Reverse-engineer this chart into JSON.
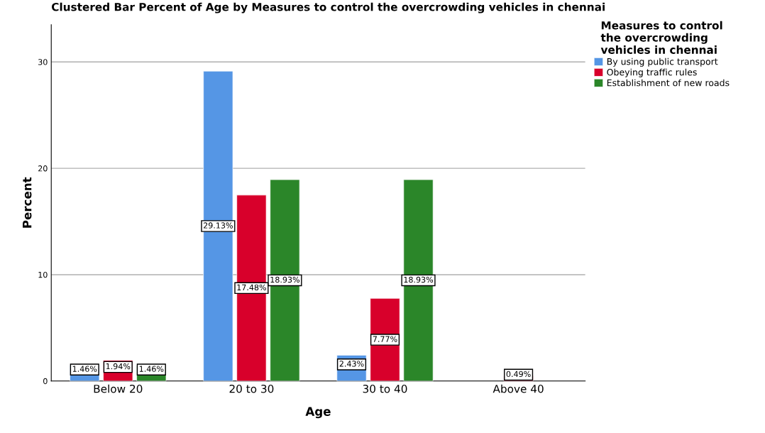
{
  "chart_data": {
    "type": "bar",
    "title": "Clustered Bar Percent of Age by Measures to control the overcrowding vehicles in chennai",
    "xlabel": "Age",
    "ylabel": "Percent",
    "legend_title": "Measures to control\nthe overcrowding\nvehicles in chennai",
    "legend": "right",
    "categories": [
      "Below 20",
      "20 to 30",
      "30 to 40",
      "Above 40"
    ],
    "series": [
      {
        "name": "By using public transport",
        "color": "#5596e5",
        "values": [
          1.46,
          29.13,
          2.43,
          null
        ],
        "value_labels": [
          "1.46%",
          "29.13%",
          "2.43%",
          null
        ]
      },
      {
        "name": "Obeying traffic rules",
        "color": "#d8002b",
        "values": [
          1.94,
          17.48,
          7.77,
          0.49
        ],
        "value_labels": [
          "1.94%",
          "17.48%",
          "7.77%",
          "0.49%"
        ]
      },
      {
        "name": "Establishment of new roads",
        "color": "#2b8629",
        "values": [
          1.46,
          18.93,
          18.93,
          null
        ],
        "value_labels": [
          "1.46%",
          "18.93%",
          "18.93%",
          null
        ]
      }
    ],
    "ylim": [
      0,
      33.5
    ],
    "yticks": [
      0,
      10,
      20,
      30
    ],
    "grid": "y"
  }
}
